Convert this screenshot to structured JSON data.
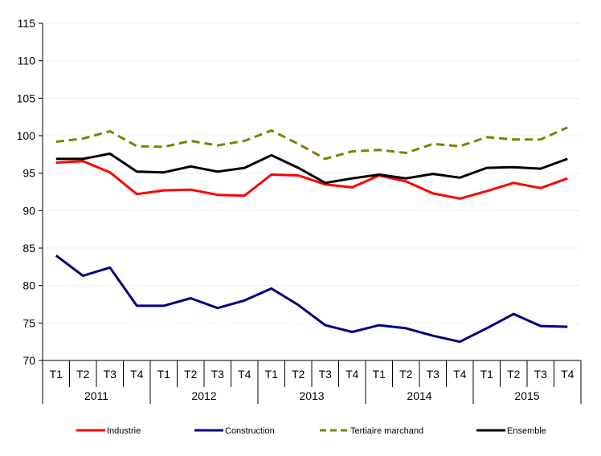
{
  "chart_data": {
    "type": "line",
    "title": "",
    "xlabel": "",
    "ylabel": "",
    "ylim": [
      70,
      115
    ],
    "yticks": [
      70,
      75,
      80,
      85,
      90,
      95,
      100,
      105,
      110,
      115
    ],
    "grid": true,
    "legend_position": "bottom",
    "quarters": [
      "T1",
      "T2",
      "T3",
      "T4",
      "T1",
      "T2",
      "T3",
      "T4",
      "T1",
      "T2",
      "T3",
      "T4",
      "T1",
      "T2",
      "T3",
      "T4",
      "T1",
      "T2",
      "T3",
      "T4"
    ],
    "years": [
      "2011",
      "2012",
      "2013",
      "2014",
      "2015"
    ],
    "series": [
      {
        "name": "Industrie",
        "color": "#ff0000",
        "dash": "solid",
        "values": [
          96.4,
          96.6,
          95.1,
          92.2,
          92.7,
          92.8,
          92.1,
          92.0,
          94.8,
          94.7,
          93.5,
          93.1,
          94.7,
          93.9,
          92.3,
          91.6,
          92.6,
          93.7,
          93.0,
          94.3
        ]
      },
      {
        "name": "Construction",
        "color": "#000080",
        "dash": "solid",
        "values": [
          84.0,
          81.3,
          82.4,
          77.3,
          77.3,
          78.3,
          77.0,
          78.0,
          79.6,
          77.4,
          74.7,
          73.8,
          74.7,
          74.3,
          73.3,
          72.5,
          74.3,
          76.2,
          74.6,
          74.5
        ]
      },
      {
        "name": "Tertiaire marchand",
        "color": "#808000",
        "dash": "dashed",
        "values": [
          99.2,
          99.6,
          100.6,
          98.6,
          98.5,
          99.3,
          98.7,
          99.3,
          100.7,
          98.9,
          96.9,
          97.9,
          98.1,
          97.7,
          98.9,
          98.6,
          99.8,
          99.5,
          99.5,
          101.1
        ]
      },
      {
        "name": "Ensemble",
        "color": "#000000",
        "dash": "solid",
        "values": [
          96.9,
          96.9,
          97.6,
          95.2,
          95.1,
          95.9,
          95.2,
          95.7,
          97.4,
          95.7,
          93.7,
          94.3,
          94.8,
          94.3,
          94.9,
          94.4,
          95.7,
          95.8,
          95.6,
          96.9
        ]
      }
    ]
  }
}
